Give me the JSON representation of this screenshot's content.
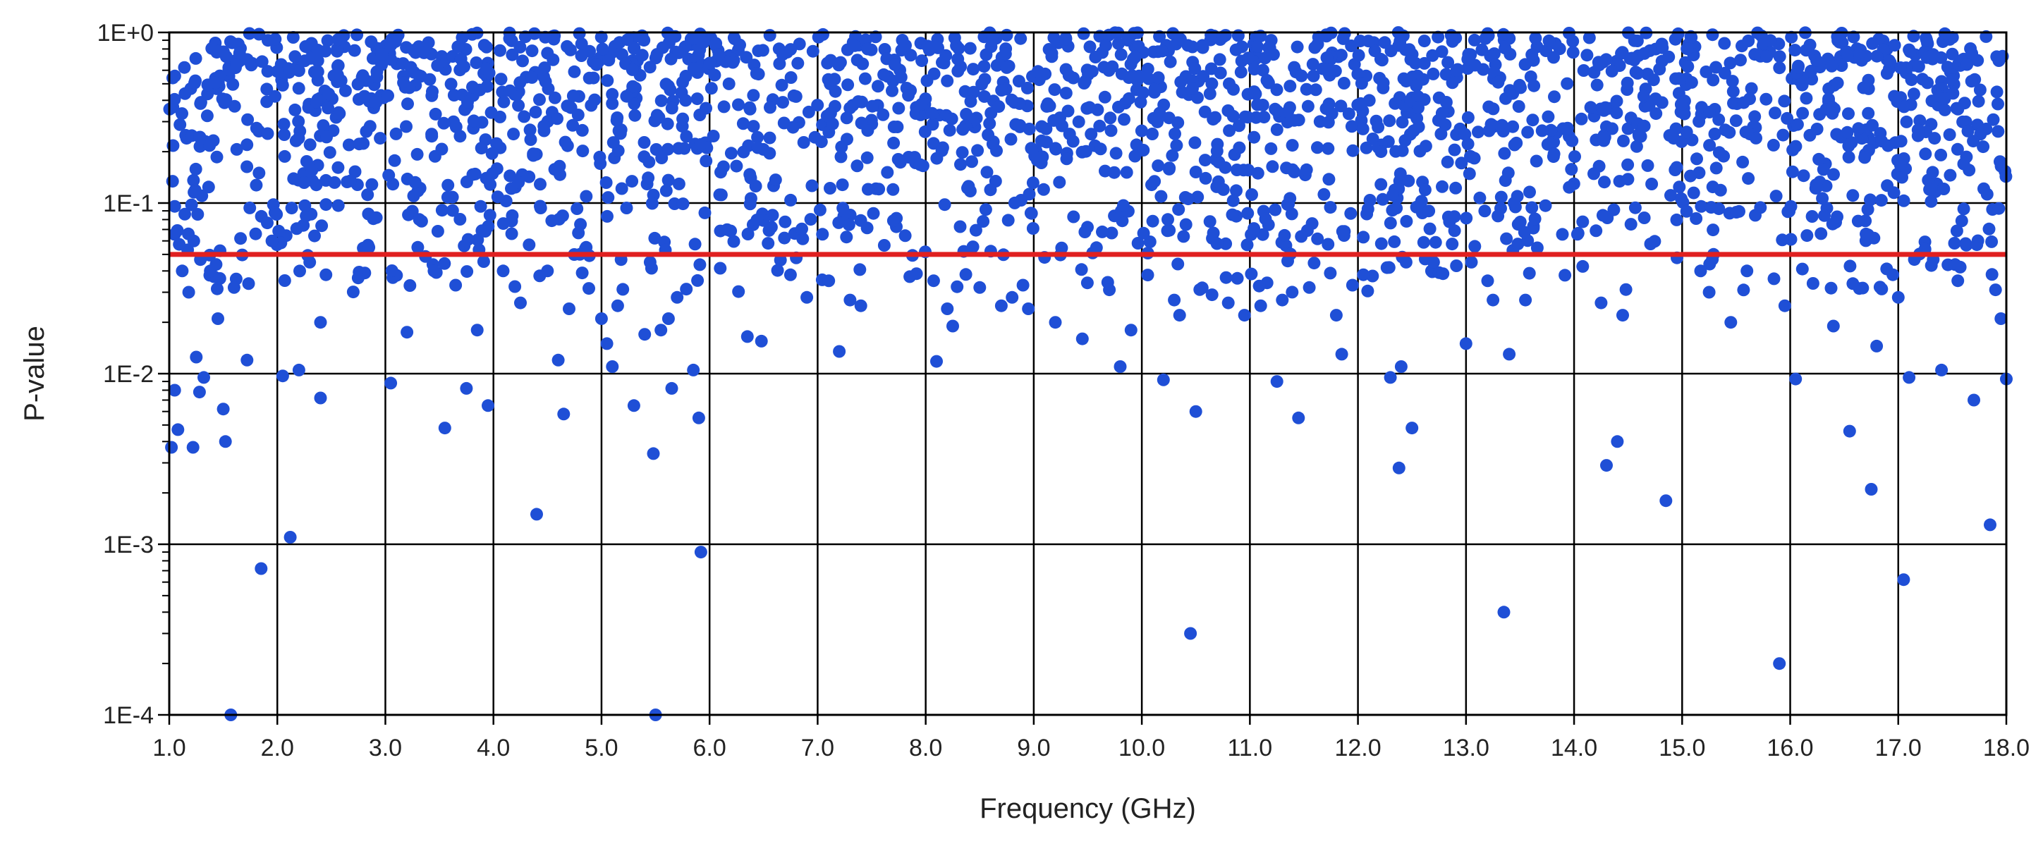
{
  "chart_data": {
    "type": "scatter",
    "title": "",
    "xlabel": "Frequency (GHz)",
    "ylabel": "P-value",
    "xlim": [
      1.0,
      18.0
    ],
    "ylim": [
      0.0001,
      1
    ],
    "yscale": "log",
    "grid": true,
    "legend": "none",
    "x_ticks": [
      "1.0",
      "2.0",
      "3.0",
      "4.0",
      "5.0",
      "6.0",
      "7.0",
      "8.0",
      "9.0",
      "10.0",
      "11.0",
      "12.0",
      "13.0",
      "14.0",
      "15.0",
      "16.0",
      "17.0",
      "18.0"
    ],
    "y_ticks": [
      {
        "value": 1,
        "label": "1E+0"
      },
      {
        "value": 0.1,
        "label": "1E-1"
      },
      {
        "value": 0.01,
        "label": "1E-2"
      },
      {
        "value": 0.001,
        "label": "1E-3"
      },
      {
        "value": 0.0001,
        "label": "1E-4"
      }
    ],
    "series": [
      {
        "color": "#1f4fd6",
        "note_points_low": [
          [
            1.02,
            0.0037
          ],
          [
            1.05,
            0.008
          ],
          [
            1.08,
            0.0047
          ],
          [
            1.12,
            0.04
          ],
          [
            1.18,
            0.03
          ],
          [
            1.22,
            0.0037
          ],
          [
            1.25,
            0.0125
          ],
          [
            1.28,
            0.0078
          ],
          [
            1.32,
            0.0095
          ],
          [
            1.38,
            0.04
          ],
          [
            1.45,
            0.021
          ],
          [
            1.5,
            0.0062
          ],
          [
            1.52,
            0.004
          ],
          [
            1.57,
            0.0001
          ],
          [
            1.6,
            0.032
          ],
          [
            1.66,
            0.062
          ],
          [
            1.72,
            0.012
          ],
          [
            1.85,
            0.00072
          ],
          [
            1.95,
            0.06
          ],
          [
            2.05,
            0.0097
          ],
          [
            2.12,
            0.0011
          ],
          [
            2.2,
            0.0105
          ],
          [
            2.3,
            0.045
          ],
          [
            2.4,
            0.0072
          ],
          [
            2.4,
            0.02
          ],
          [
            2.45,
            0.038
          ],
          [
            3.05,
            0.0088
          ],
          [
            3.2,
            0.0175
          ],
          [
            3.3,
            0.055
          ],
          [
            3.45,
            0.04
          ],
          [
            3.55,
            0.0048
          ],
          [
            3.65,
            0.033
          ],
          [
            3.75,
            0.0082
          ],
          [
            3.85,
            0.018
          ],
          [
            3.95,
            0.0065
          ],
          [
            4.25,
            0.026
          ],
          [
            4.4,
            0.0015
          ],
          [
            4.5,
            0.04
          ],
          [
            4.6,
            0.012
          ],
          [
            4.65,
            0.0058
          ],
          [
            4.7,
            0.024
          ],
          [
            4.8,
            0.05
          ],
          [
            5.0,
            0.021
          ],
          [
            5.05,
            0.015
          ],
          [
            5.1,
            0.011
          ],
          [
            5.15,
            0.025
          ],
          [
            5.3,
            0.0065
          ],
          [
            5.4,
            0.017
          ],
          [
            5.45,
            0.045
          ],
          [
            5.48,
            0.0034
          ],
          [
            5.5,
            0.0001
          ],
          [
            5.55,
            0.018
          ],
          [
            5.62,
            0.021
          ],
          [
            5.65,
            0.0082
          ],
          [
            5.7,
            0.028
          ],
          [
            5.85,
            0.0105
          ],
          [
            5.9,
            0.0055
          ],
          [
            5.92,
            0.0009
          ],
          [
            6.35,
            0.0165
          ],
          [
            6.48,
            0.0155
          ],
          [
            6.9,
            0.028
          ],
          [
            7.2,
            0.0135
          ],
          [
            7.3,
            0.027
          ],
          [
            7.4,
            0.025
          ],
          [
            8.1,
            0.0118
          ],
          [
            8.2,
            0.024
          ],
          [
            8.25,
            0.019
          ],
          [
            8.5,
            0.032
          ],
          [
            8.7,
            0.025
          ],
          [
            8.8,
            0.028
          ],
          [
            8.9,
            0.033
          ],
          [
            8.95,
            0.024
          ],
          [
            9.1,
            0.048
          ],
          [
            9.2,
            0.02
          ],
          [
            9.45,
            0.016
          ],
          [
            9.7,
            0.031
          ],
          [
            9.8,
            0.011
          ],
          [
            9.9,
            0.018
          ],
          [
            10.2,
            0.0092
          ],
          [
            10.3,
            0.027
          ],
          [
            10.35,
            0.022
          ],
          [
            10.45,
            0.0003
          ],
          [
            10.5,
            0.006
          ],
          [
            10.65,
            0.029
          ],
          [
            10.8,
            0.026
          ],
          [
            10.95,
            0.022
          ],
          [
            11.1,
            0.025
          ],
          [
            11.25,
            0.009
          ],
          [
            11.3,
            0.027
          ],
          [
            11.45,
            0.0055
          ],
          [
            11.55,
            0.032
          ],
          [
            11.8,
            0.022
          ],
          [
            11.85,
            0.013
          ],
          [
            11.95,
            0.033
          ],
          [
            12.05,
            0.038
          ],
          [
            12.3,
            0.0095
          ],
          [
            12.38,
            0.0028
          ],
          [
            12.4,
            0.011
          ],
          [
            12.5,
            0.0048
          ],
          [
            12.7,
            0.045
          ],
          [
            13.0,
            0.015
          ],
          [
            13.05,
            0.045
          ],
          [
            13.2,
            0.035
          ],
          [
            13.25,
            0.027
          ],
          [
            13.35,
            0.0004
          ],
          [
            13.4,
            0.013
          ],
          [
            13.55,
            0.027
          ],
          [
            14.25,
            0.026
          ],
          [
            14.3,
            0.0029
          ],
          [
            14.4,
            0.004
          ],
          [
            14.45,
            0.022
          ],
          [
            14.85,
            0.0018
          ],
          [
            15.25,
            0.03
          ],
          [
            15.45,
            0.02
          ],
          [
            15.6,
            0.04
          ],
          [
            15.85,
            0.036
          ],
          [
            15.9,
            0.0002
          ],
          [
            15.95,
            0.025
          ],
          [
            16.05,
            0.0093
          ],
          [
            16.4,
            0.019
          ],
          [
            16.55,
            0.0046
          ],
          [
            16.75,
            0.0021
          ],
          [
            16.8,
            0.0145
          ],
          [
            16.95,
            0.038
          ],
          [
            17.0,
            0.028
          ],
          [
            17.05,
            0.00062
          ],
          [
            17.1,
            0.0095
          ],
          [
            17.4,
            0.0105
          ],
          [
            17.7,
            0.007
          ],
          [
            17.85,
            0.0013
          ],
          [
            17.9,
            0.031
          ],
          [
            17.95,
            0.021
          ],
          [
            18.0,
            0.0093
          ]
        ],
        "dense_band": {
          "x_range": [
            1.0,
            18.0
          ],
          "y_range": [
            0.05,
            1
          ],
          "count": 1800
        },
        "threshold_band": {
          "x_range": [
            1.0,
            18.0
          ],
          "y_range": [
            0.03,
            0.1
          ],
          "count": 260
        }
      }
    ],
    "reference_lines": [
      {
        "axis": "y",
        "value": 0.05,
        "color": "#e02020"
      }
    ]
  }
}
